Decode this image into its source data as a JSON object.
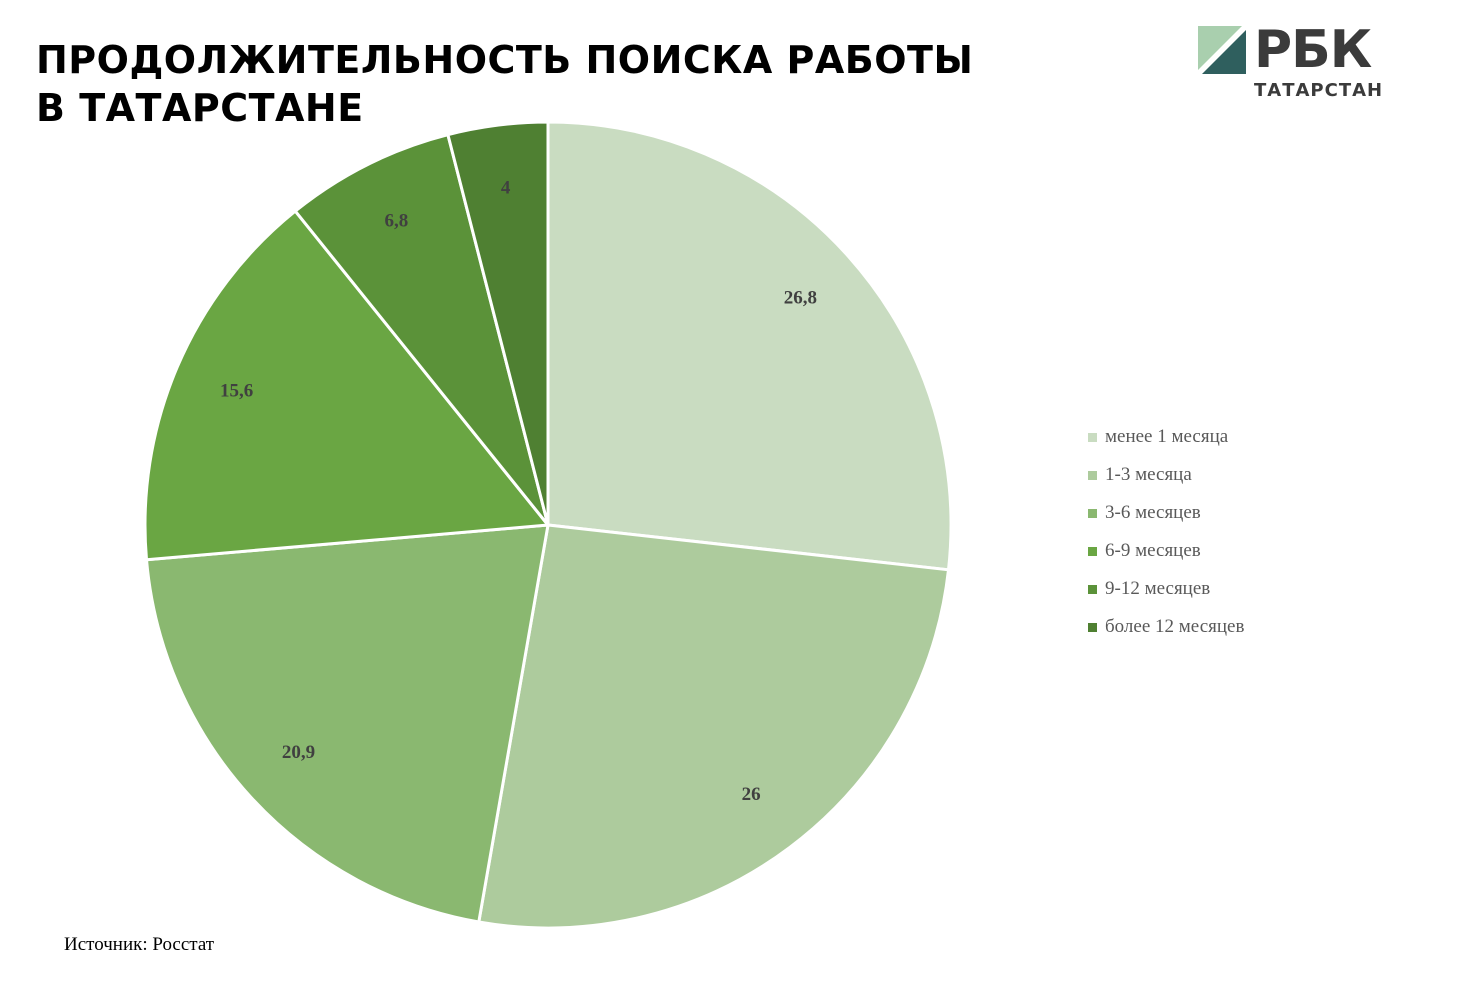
{
  "title": {
    "line1": "ПРОДОЛЖИТЕЛЬНОСТЬ ПОИСКА РАБОТЫ",
    "line2": "В ТАТАРСТАНЕ"
  },
  "logo": {
    "brand": "РБК",
    "region": "ТАТАРСТАН"
  },
  "source": "Источник: Росстат",
  "chart_data": {
    "type": "pie",
    "title": "ПРОДОЛЖИТЕЛЬНОСТЬ ПОИСКА РАБОТЫ В ТАТАРСТАНЕ",
    "categories": [
      "менее 1 месяца",
      "1-3 месяца",
      "3-6 месяцев",
      "6-9 месяцев",
      "9-12 месяцев",
      "более 12 месяцев"
    ],
    "values": [
      26.8,
      26,
      20.9,
      15.6,
      6.8,
      4
    ],
    "labels": [
      "26,8",
      "26",
      "20,9",
      "15,6",
      "6,8",
      "4"
    ],
    "colors": [
      "#c9dcc1",
      "#adcb9d",
      "#8ab870",
      "#6aa643",
      "#5b9239",
      "#4f8032"
    ],
    "legend_position": "right"
  }
}
